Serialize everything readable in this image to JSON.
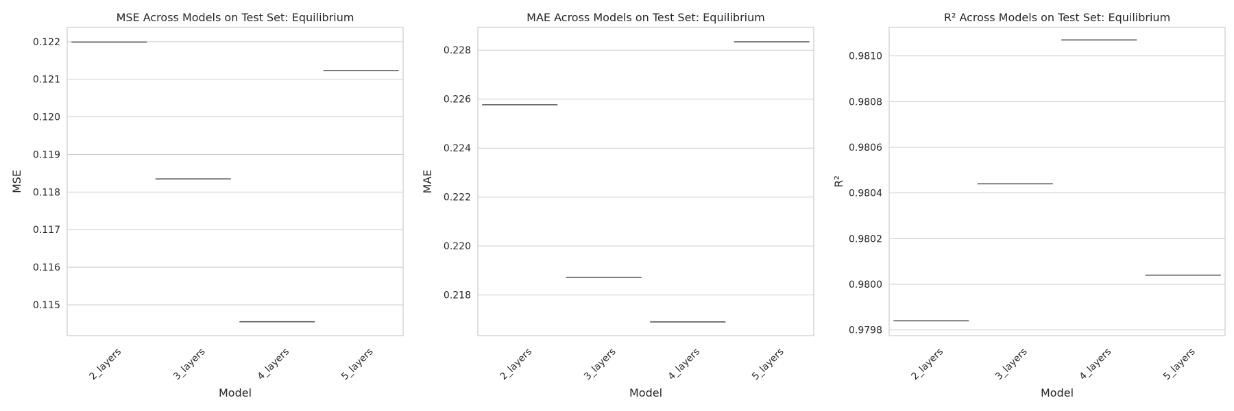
{
  "chart_data": [
    {
      "type": "box",
      "title": "MSE Across Models on Test Set: Equilibrium",
      "xlabel": "Model",
      "ylabel": "MSE",
      "categories": [
        "2_layers",
        "3_layers",
        "4_layers",
        "5_layers"
      ],
      "values": [
        0.12199,
        0.11835,
        0.11455,
        0.12123
      ],
      "ylim": [
        0.11418,
        0.12238
      ],
      "yticks": [
        0.115,
        0.116,
        0.117,
        0.118,
        0.119,
        0.12,
        0.121,
        0.122
      ],
      "ytick_labels": [
        "0.115",
        "0.116",
        "0.117",
        "0.118",
        "0.119",
        "0.120",
        "0.121",
        "0.122"
      ],
      "grid": "horizontal"
    },
    {
      "type": "box",
      "title": "MAE Across Models on Test Set: Equilibrium",
      "xlabel": "Model",
      "ylabel": "MAE",
      "categories": [
        "2_layers",
        "3_layers",
        "4_layers",
        "5_layers"
      ],
      "values": [
        0.22577,
        0.21872,
        0.2169,
        0.22834
      ],
      "ylim": [
        0.21634,
        0.22893
      ],
      "yticks": [
        0.218,
        0.22,
        0.222,
        0.224,
        0.226,
        0.228
      ],
      "ytick_labels": [
        "0.218",
        "0.220",
        "0.222",
        "0.224",
        "0.226",
        "0.228"
      ],
      "grid": "horizontal"
    },
    {
      "type": "box",
      "title": "R² Across Models on Test Set: Equilibrium",
      "xlabel": "Model",
      "ylabel": "R²",
      "categories": [
        "2_layers",
        "3_layers",
        "4_layers",
        "5_layers"
      ],
      "values": [
        0.97984,
        0.98044,
        0.98107,
        0.98004
      ],
      "ylim": [
        0.979775,
        0.981125
      ],
      "yticks": [
        0.9798,
        0.98,
        0.9802,
        0.9804,
        0.9806,
        0.9808,
        0.981
      ],
      "ytick_labels": [
        "0.9798",
        "0.9800",
        "0.9802",
        "0.9804",
        "0.9806",
        "0.9808",
        "0.9810"
      ],
      "grid": "horizontal"
    }
  ]
}
